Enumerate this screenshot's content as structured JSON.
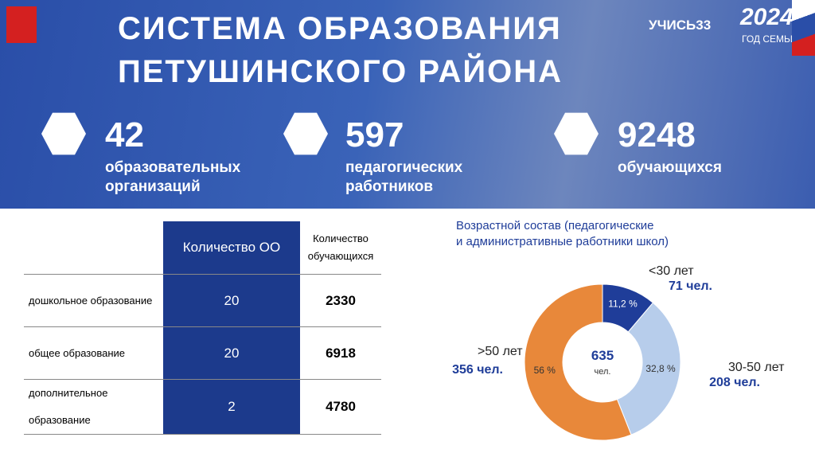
{
  "header": {
    "title_line1": "СИСТЕМА ОБРАЗОВАНИЯ",
    "title_line2": "ПЕТУШИНСКОГО РАЙОНА",
    "logo_left": "УЧИСЬ33",
    "logo_year": "2024",
    "logo_year_caption": "ГОД СЕМЬИ"
  },
  "stats": [
    {
      "value": 42,
      "label": [
        "образовательных",
        "организаций"
      ]
    },
    {
      "value": 597,
      "label": [
        "педагогических",
        "работников"
      ]
    },
    {
      "value": 9248,
      "label": [
        "обучающихся"
      ]
    }
  ],
  "table": {
    "headers": [
      "Количество ОО",
      "Количество обучающихся"
    ],
    "rows": [
      [
        "дошкольное образование",
        20,
        2330
      ],
      [
        "общее образование",
        20,
        6918
      ],
      [
        "дополнительное образование",
        2,
        4780
      ]
    ]
  },
  "chart_data": {
    "type": "pie",
    "title": [
      "Возрастной состав (педагогические",
      "и административные работники школ)"
    ],
    "categories": [
      "<30 лет",
      "30-50 лет",
      ">50 лет"
    ],
    "values": [
      11.2,
      32.8,
      56
    ],
    "value_labels": [
      "11,2 %",
      "32,8 %",
      "56 %"
    ],
    "counts": [
      "71 чел.",
      "208 чел.",
      "356 чел."
    ],
    "colors": [
      "#1f3d99",
      "#b7cdeb",
      "#e8883a"
    ],
    "center_value": 635,
    "center_label": "чел."
  }
}
